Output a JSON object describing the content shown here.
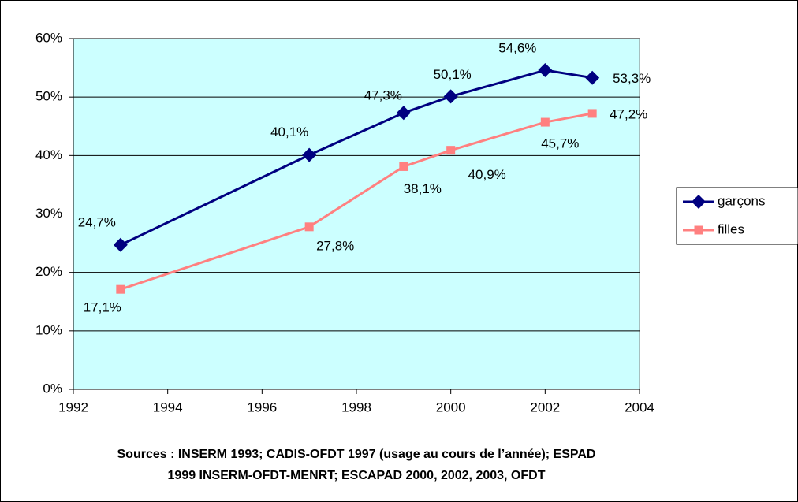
{
  "chart_data": {
    "type": "line",
    "x": [
      1993,
      1997,
      1999,
      2000,
      2002,
      2003
    ],
    "series": [
      {
        "name": "garçons",
        "color": "#000080",
        "marker": "diamond",
        "values": [
          24.7,
          40.1,
          47.3,
          50.1,
          54.6,
          53.3
        ],
        "value_labels": [
          "24,7%",
          "40,1%",
          "47,3%",
          "50,1%",
          "54,6%",
          "53,3%"
        ]
      },
      {
        "name": "filles",
        "color": "#ff8080",
        "marker": "square",
        "values": [
          17.1,
          27.8,
          38.1,
          40.9,
          45.7,
          47.2
        ],
        "value_labels": [
          "17,1%",
          "27,8%",
          "38,1%",
          "40,9%",
          "45,7%",
          "47,2%"
        ]
      }
    ],
    "xlim": [
      1992,
      2004
    ],
    "xticks": [
      1992,
      1994,
      1996,
      1998,
      2000,
      2002,
      2004
    ],
    "ylim": [
      0,
      60
    ],
    "yticks": [
      {
        "value": 0,
        "label": "0%"
      },
      {
        "value": 10,
        "label": "10%"
      },
      {
        "value": 20,
        "label": "20%"
      },
      {
        "value": 30,
        "label": "30%"
      },
      {
        "value": 40,
        "label": "40%"
      },
      {
        "value": 50,
        "label": "50%"
      },
      {
        "value": 60,
        "label": "60%"
      }
    ],
    "grid": true,
    "legend": "right",
    "source": [
      "Sources : INSERM 1993; CADIS-OFDT 1997 (usage au cours de l’année); ESPAD",
      "1999 INSERM-OFDT-MENRT; ESCAPAD 2000, 2002, 2003, OFDT"
    ]
  }
}
